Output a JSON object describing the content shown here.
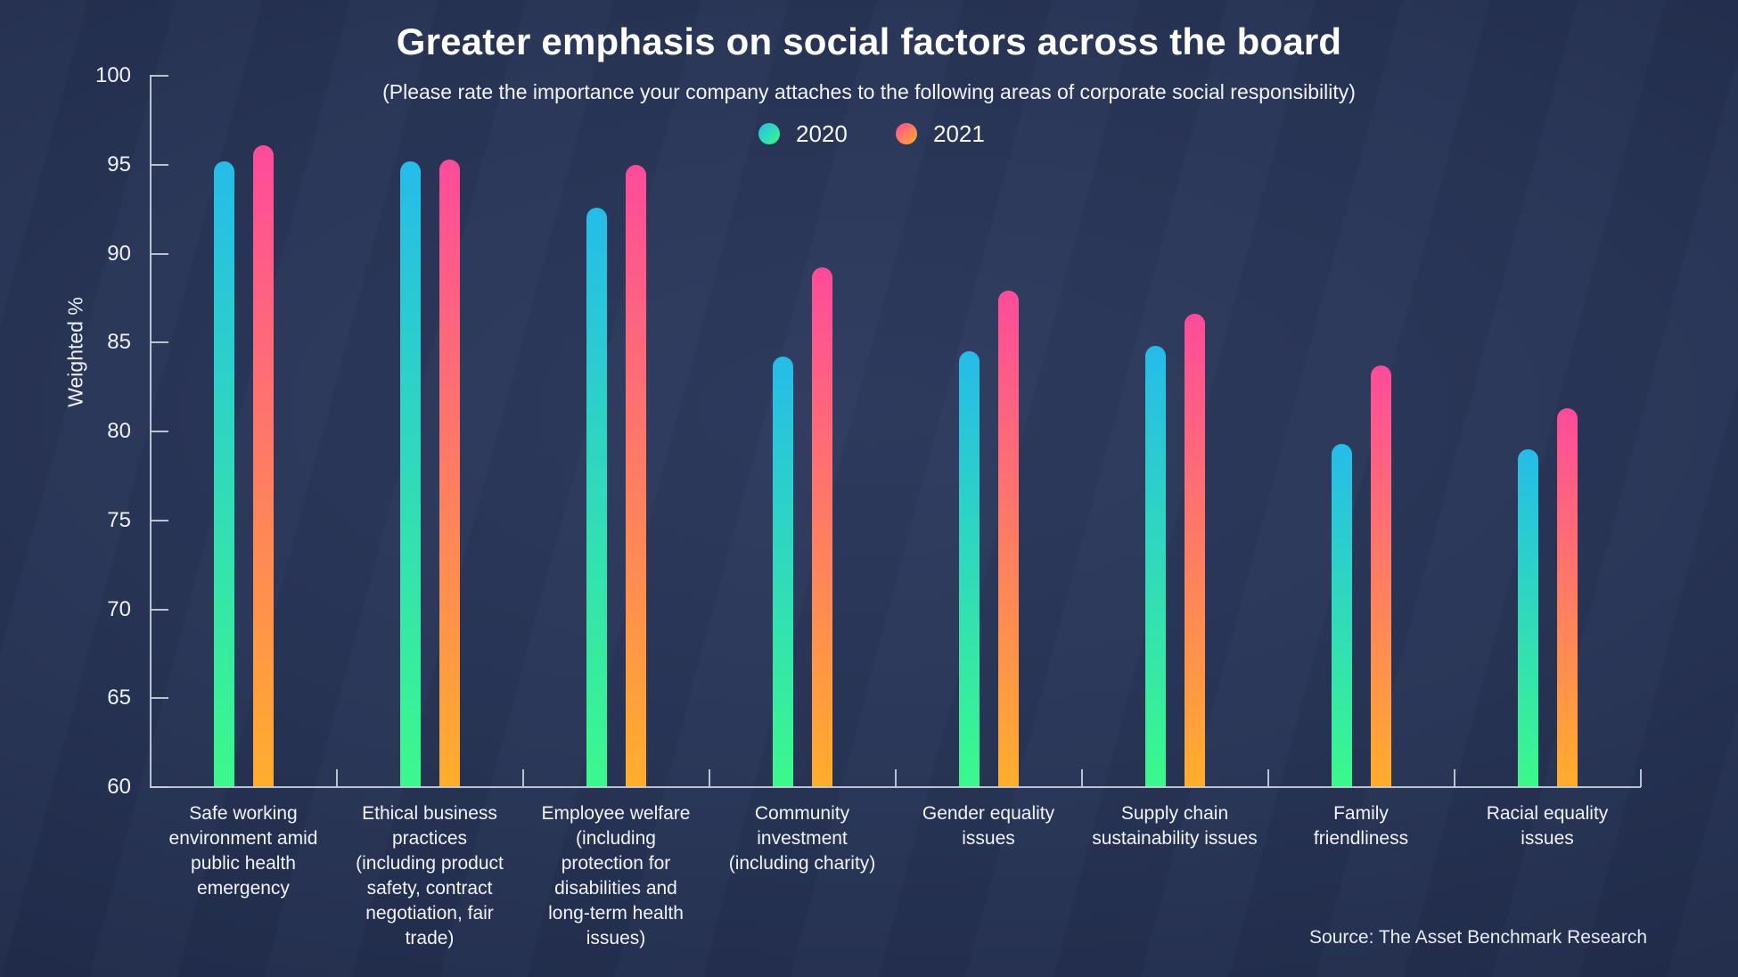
{
  "title": "Greater emphasis on social factors across the board",
  "subtitle": "(Please rate the importance your company attaches to the following areas of corporate social responsibility)",
  "source": "Source: The Asset Benchmark Research",
  "legend": {
    "items": [
      {
        "label": "2020",
        "colors": [
          "#25bce9",
          "#3bf98b"
        ]
      },
      {
        "label": "2021",
        "colors": [
          "#fe4b9b",
          "#ffae2b"
        ]
      }
    ]
  },
  "colors": {
    "background_center": "#2e3a5e",
    "background_edge": "#1c2540",
    "text": "#f2f4f9",
    "axis": "#c7cdda",
    "series_2020_top": "#25bce9",
    "series_2020_bottom": "#3bf98b",
    "series_2021_top": "#fe4b9b",
    "series_2021_bottom": "#ffae2b"
  },
  "chart_data": {
    "type": "bar",
    "title": "Greater emphasis on social factors across the board",
    "subtitle": "(Please rate the importance your company attaches to the following areas of corporate social responsibility)",
    "ylabel": "Weighted %",
    "ylim": [
      60,
      100
    ],
    "yticks": [
      60,
      65,
      70,
      75,
      80,
      85,
      90,
      95,
      100
    ],
    "grid": false,
    "legend_position": "top-center",
    "categories": [
      "Safe working environment amid public health emergency",
      "Ethical business practices (including product safety, contract negotiation, fair trade)",
      "Employee welfare (including protection for disabilities and long-term health issues)",
      "Community investment (including charity)",
      "Gender equality issues",
      "Supply chain sustainability issues",
      "Family friendliness",
      "Racial equality issues"
    ],
    "category_lines": [
      [
        "Safe working",
        "environment amid",
        "public health",
        "emergency"
      ],
      [
        "Ethical business",
        "practices",
        "(including product",
        "safety, contract",
        "negotiation, fair",
        "trade)"
      ],
      [
        "Employee welfare",
        "(including",
        "protection for",
        "disabilities and",
        "long-term health",
        "issues)"
      ],
      [
        "Community",
        "investment",
        "(including charity)"
      ],
      [
        "Gender equality",
        "issues"
      ],
      [
        "Supply chain",
        "sustainability issues"
      ],
      [
        "Family",
        "friendliness"
      ],
      [
        "Racial equality",
        "issues"
      ]
    ],
    "series": [
      {
        "name": "2020",
        "values": [
          95.2,
          95.2,
          92.6,
          84.2,
          84.5,
          84.8,
          79.3,
          79.0
        ]
      },
      {
        "name": "2021",
        "values": [
          96.1,
          95.3,
          95.0,
          89.2,
          87.9,
          86.6,
          83.7,
          81.3
        ]
      }
    ]
  }
}
